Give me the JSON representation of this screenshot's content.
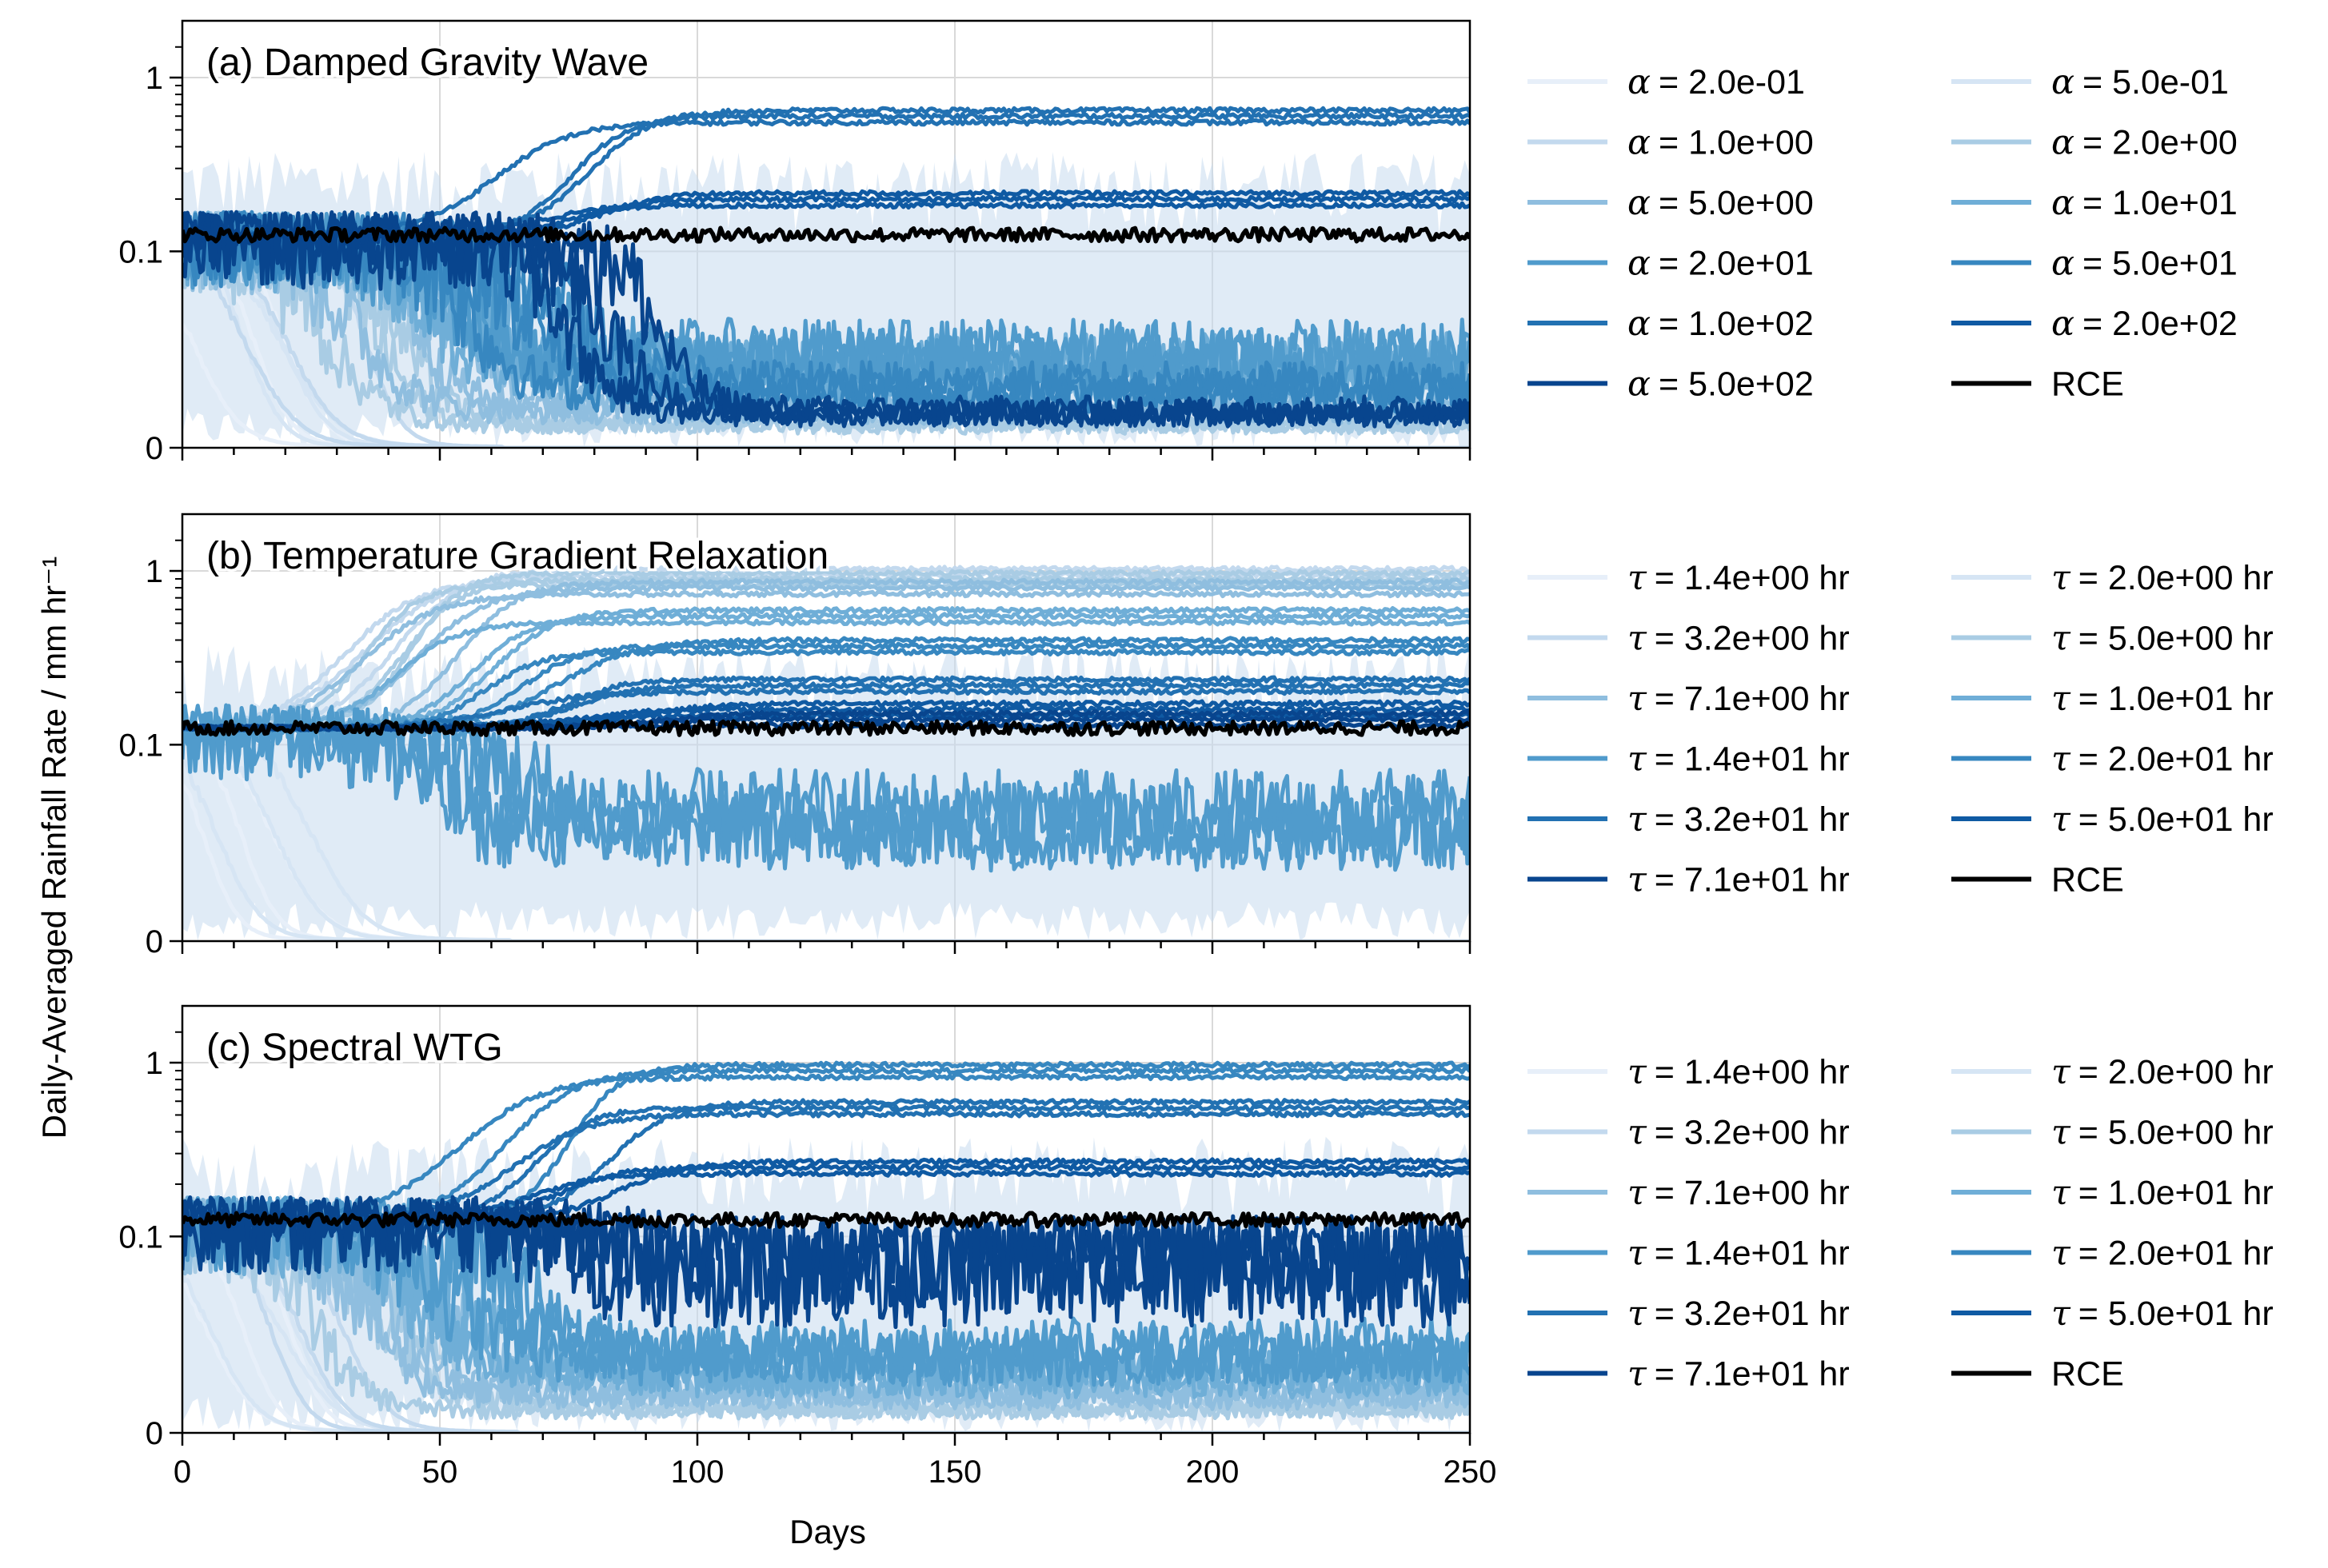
{
  "figure": {
    "ylabel": "Daily-Averaged Rainfall Rate / mm hr⁻¹",
    "xlabel": "Days"
  },
  "colors": {
    "rce": "#000000",
    "grid": "#d9d9d9",
    "shade": "#c6dbef"
  },
  "chart_data": [
    {
      "type": "line",
      "title": "(a) Damped Gravity Wave",
      "xlim": [
        0,
        250
      ],
      "xticks": [
        0,
        50,
        100,
        150,
        200,
        250
      ],
      "y_scale": "symlog",
      "yticks": [
        0,
        0.1,
        1
      ],
      "ytick_labels": [
        "0",
        "0.1",
        "1"
      ],
      "grid": true,
      "legend_placement": "right",
      "rce_level": 0.125,
      "series": [
        {
          "name": "α = 2.0e-01",
          "symbol": "α",
          "text": "= 2.0e-01",
          "color": "#e7eff9",
          "final": 0
        },
        {
          "name": "α = 5.0e-01",
          "symbol": "α",
          "text": "= 5.0e-01",
          "color": "#d6e5f4",
          "final": 0
        },
        {
          "name": "α = 1.0e+00",
          "symbol": "α",
          "text": "= 1.0e+00",
          "color": "#c3d9ee",
          "final": 0
        },
        {
          "name": "α = 2.0e+00",
          "symbol": "α",
          "text": "= 2.0e+00",
          "color": "#a9cce4",
          "final": 0.012
        },
        {
          "name": "α = 5.0e+00",
          "symbol": "α",
          "text": "= 5.0e+00",
          "color": "#8fbedf",
          "final": 0.02
        },
        {
          "name": "α = 1.0e+01",
          "symbol": "α",
          "text": "= 1.0e+01",
          "color": "#6faed7",
          "final": 0.04
        },
        {
          "name": "α = 2.0e+01",
          "symbol": "α",
          "text": "= 2.0e+01",
          "color": "#509bcc",
          "final": 0.045
        },
        {
          "name": "α = 5.0e+01",
          "symbol": "α",
          "text": "= 5.0e+01",
          "color": "#3787c0",
          "final": 0.03
        },
        {
          "name": "α = 1.0e+02",
          "symbol": "α",
          "text": "= 1.0e+02",
          "color": "#2271b2",
          "final": 0.6
        },
        {
          "name": "α = 2.0e+02",
          "symbol": "α",
          "text": "= 2.0e+02",
          "color": "#0f5aa3",
          "final": 0.2
        },
        {
          "name": "α = 5.0e+02",
          "symbol": "α",
          "text": "= 5.0e+02",
          "color": "#08458e",
          "final": 0.018
        },
        {
          "name": "RCE",
          "symbol": "",
          "text": "RCE",
          "color": "#000000",
          "final": 0.125
        }
      ]
    },
    {
      "type": "line",
      "title": "(b) Temperature Gradient Relaxation",
      "xlim": [
        0,
        250
      ],
      "xticks": [
        0,
        50,
        100,
        150,
        200,
        250
      ],
      "y_scale": "symlog",
      "yticks": [
        0,
        0.1,
        1
      ],
      "ytick_labels": [
        "0",
        "0.1",
        "1"
      ],
      "grid": true,
      "legend_placement": "right",
      "rce_level": 0.125,
      "series": [
        {
          "name": "τ = 1.4e+00 hr",
          "symbol": "τ",
          "text": "= 1.4e+00 hr",
          "color": "#e7eff9",
          "final": 0
        },
        {
          "name": "τ = 2.0e+00 hr",
          "symbol": "τ",
          "text": "= 2.0e+00 hr",
          "color": "#d6e5f4",
          "final": 0
        },
        {
          "name": "τ = 3.2e+00 hr",
          "symbol": "τ",
          "text": "= 3.2e+00 hr",
          "color": "#c3d9ee",
          "final": 0.95
        },
        {
          "name": "τ = 5.0e+00 hr",
          "symbol": "τ",
          "text": "= 5.0e+00 hr",
          "color": "#a9cce4",
          "final": 0.9
        },
        {
          "name": "τ = 7.1e+00 hr",
          "symbol": "τ",
          "text": "= 7.1e+00 hr",
          "color": "#8fbedf",
          "final": 0.8
        },
        {
          "name": "τ = 1.0e+01 hr",
          "symbol": "τ",
          "text": "= 1.0e+01 hr",
          "color": "#6faed7",
          "final": 0.55
        },
        {
          "name": "τ = 1.4e+01 hr",
          "symbol": "τ",
          "text": "= 1.4e+01 hr",
          "color": "#509bcc",
          "final": 0.06
        },
        {
          "name": "τ = 2.0e+01 hr",
          "symbol": "τ",
          "text": "= 2.0e+01 hr",
          "color": "#3787c0",
          "final": 0.37
        },
        {
          "name": "τ = 3.2e+01 hr",
          "symbol": "τ",
          "text": "= 3.2e+01 hr",
          "color": "#2271b2",
          "final": 0.22
        },
        {
          "name": "τ = 5.0e+01 hr",
          "symbol": "τ",
          "text": "= 5.0e+01 hr",
          "color": "#0f5aa3",
          "final": 0.16
        },
        {
          "name": "τ = 7.1e+01 hr",
          "symbol": "τ",
          "text": "= 7.1e+01 hr",
          "color": "#08458e",
          "final": 0.14
        },
        {
          "name": "RCE",
          "symbol": "",
          "text": "RCE",
          "color": "#000000",
          "final": 0.125
        }
      ]
    },
    {
      "type": "line",
      "title": "(c) Spectral WTG",
      "xlim": [
        0,
        250
      ],
      "xticks": [
        0,
        50,
        100,
        150,
        200,
        250
      ],
      "y_scale": "symlog",
      "yticks": [
        0,
        0.1,
        1
      ],
      "ytick_labels": [
        "0",
        "0.1",
        "1"
      ],
      "grid": true,
      "legend_placement": "right",
      "rce_level": 0.125,
      "series": [
        {
          "name": "τ = 1.4e+00 hr",
          "symbol": "τ",
          "text": "= 1.4e+00 hr",
          "color": "#e7eff9",
          "final": 0
        },
        {
          "name": "τ = 2.0e+00 hr",
          "symbol": "τ",
          "text": "= 2.0e+00 hr",
          "color": "#d6e5f4",
          "final": 0
        },
        {
          "name": "τ = 3.2e+00 hr",
          "symbol": "τ",
          "text": "= 3.2e+00 hr",
          "color": "#c3d9ee",
          "final": 0
        },
        {
          "name": "τ = 5.0e+00 hr",
          "symbol": "τ",
          "text": "= 5.0e+00 hr",
          "color": "#a9cce4",
          "final": 0.012
        },
        {
          "name": "τ = 7.1e+00 hr",
          "symbol": "τ",
          "text": "= 7.1e+00 hr",
          "color": "#8fbedf",
          "final": 0.02
        },
        {
          "name": "τ = 1.0e+01 hr",
          "symbol": "τ",
          "text": "= 1.0e+01 hr",
          "color": "#6faed7",
          "final": 0.03
        },
        {
          "name": "τ = 1.4e+01 hr",
          "symbol": "τ",
          "text": "= 1.4e+01 hr",
          "color": "#509bcc",
          "final": 0.04
        },
        {
          "name": "τ = 2.0e+01 hr",
          "symbol": "τ",
          "text": "= 2.0e+01 hr",
          "color": "#3787c0",
          "final": 0.9
        },
        {
          "name": "τ = 3.2e+01 hr",
          "symbol": "τ",
          "text": "= 3.2e+01 hr",
          "color": "#2271b2",
          "final": 0.55
        },
        {
          "name": "τ = 5.0e+01 hr",
          "symbol": "τ",
          "text": "= 5.0e+01 hr",
          "color": "#0f5aa3",
          "final": 0.25
        },
        {
          "name": "τ = 7.1e+01 hr",
          "symbol": "τ",
          "text": "= 7.1e+01 hr",
          "color": "#08458e",
          "final": 0.09
        },
        {
          "name": "RCE",
          "symbol": "",
          "text": "RCE",
          "color": "#000000",
          "final": 0.125
        }
      ]
    }
  ]
}
